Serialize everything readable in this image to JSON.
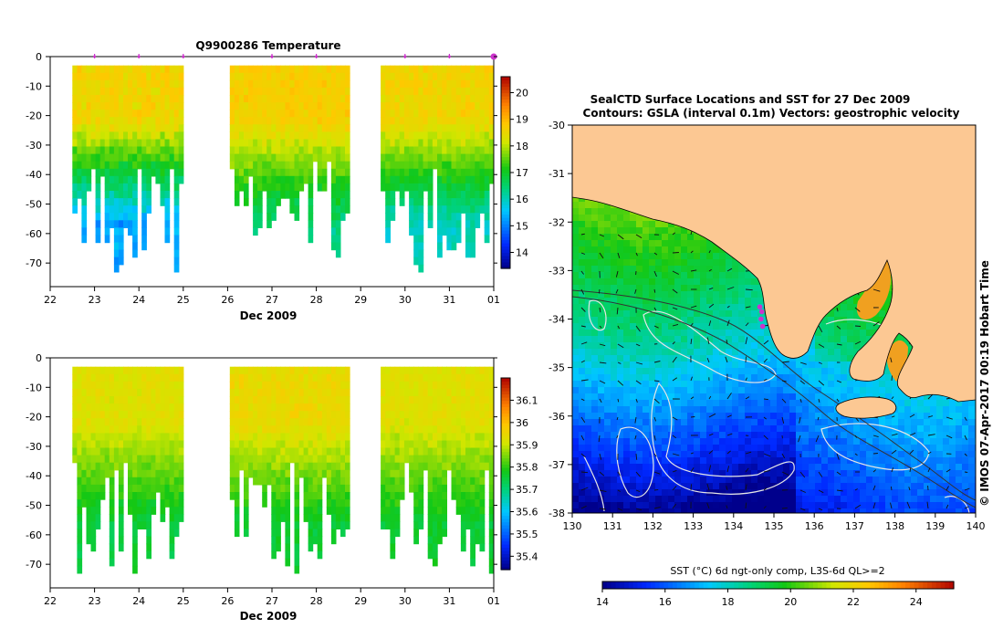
{
  "chart_data": [
    {
      "id": "temperature-section",
      "type": "heatmap",
      "title": "Q9900286  Temperature",
      "xlabel": "Dec 2009",
      "ylabel": "",
      "x_tick_labels": [
        "22",
        "23",
        "24",
        "25",
        "26",
        "27",
        "28",
        "29",
        "30",
        "31",
        "01"
      ],
      "xlim": [
        22,
        32
      ],
      "y_ticks": [
        0,
        -10,
        -20,
        -30,
        -40,
        -50,
        -60,
        -70
      ],
      "ylim": [
        -78,
        0
      ],
      "profile_markers_day": [
        23,
        24,
        25,
        27,
        28,
        30,
        31,
        32
      ],
      "colorbar": {
        "ticks": [
          14,
          15,
          16,
          17,
          18,
          19,
          20
        ],
        "range": [
          13.4,
          20.6
        ]
      },
      "data_segments": [
        {
          "start_day": 22.5,
          "end_day": 25.0,
          "surface_value": 18.6,
          "deep_value": 15.3
        },
        {
          "start_day": 26.05,
          "end_day": 28.75,
          "surface_value": 18.7,
          "deep_value": 16.4
        },
        {
          "start_day": 29.45,
          "end_day": 32.0,
          "surface_value": 18.6,
          "deep_value": 16.0
        }
      ]
    },
    {
      "id": "salinity-section",
      "type": "heatmap",
      "title": "",
      "xlabel": "Dec 2009",
      "ylabel": "",
      "x_tick_labels": [
        "22",
        "23",
        "24",
        "25",
        "26",
        "27",
        "28",
        "29",
        "30",
        "31",
        "01"
      ],
      "xlim": [
        22,
        32
      ],
      "y_ticks": [
        0,
        -10,
        -20,
        -30,
        -40,
        -50,
        -60,
        -70
      ],
      "ylim": [
        -78,
        0
      ],
      "colorbar": {
        "ticks": [
          35.4,
          35.5,
          35.6,
          35.7,
          35.8,
          35.9,
          36,
          36.1
        ],
        "range": [
          35.34,
          36.2
        ]
      },
      "colorbar_labels": [
        "35.4",
        "35.5",
        "35.6",
        "35.7",
        "35.8",
        "35.9",
        "36",
        "36.1"
      ],
      "data_segments": [
        {
          "start_day": 22.5,
          "end_day": 25.0,
          "surface_value": 35.93,
          "deep_value": 35.75
        },
        {
          "start_day": 26.05,
          "end_day": 28.75,
          "surface_value": 35.95,
          "deep_value": 35.76
        },
        {
          "start_day": 29.45,
          "end_day": 32.0,
          "surface_value": 35.93,
          "deep_value": 35.76
        }
      ]
    },
    {
      "id": "sst-map",
      "type": "heatmap",
      "title_line1": "SealCTD Surface Locations and SST for 27 Dec 2009",
      "title_line2": "Contours: GSLA (interval 0.1m) Vectors: geostrophic velocity",
      "x_ticks": [
        130,
        131,
        132,
        133,
        134,
        135,
        136,
        137,
        138,
        139,
        140
      ],
      "y_ticks": [
        -30,
        -31,
        -32,
        -33,
        -34,
        -35,
        -36,
        -37,
        -38
      ],
      "xlim": [
        130,
        140
      ],
      "ylim": [
        -38,
        -30
      ],
      "seal_track_points": [
        [
          134.65,
          -33.75
        ],
        [
          134.7,
          -33.85
        ],
        [
          134.68,
          -34.0
        ],
        [
          134.72,
          -34.15
        ]
      ],
      "watermark": "© IMOS 07-Apr-2017 00:19 Hobart Time",
      "colorbar_title": "SST (°C) 6d ngt-only comp, L3S-6d QL>=2",
      "colorbar": {
        "ticks": [
          14,
          16,
          18,
          20,
          22,
          24
        ],
        "range": [
          14,
          25.2
        ]
      }
    }
  ],
  "colors": {
    "land": "#fcc893",
    "seal_marker": "#cc33cc",
    "contour": "#e8e8e8",
    "bathymetry": "#2a2a2a"
  }
}
